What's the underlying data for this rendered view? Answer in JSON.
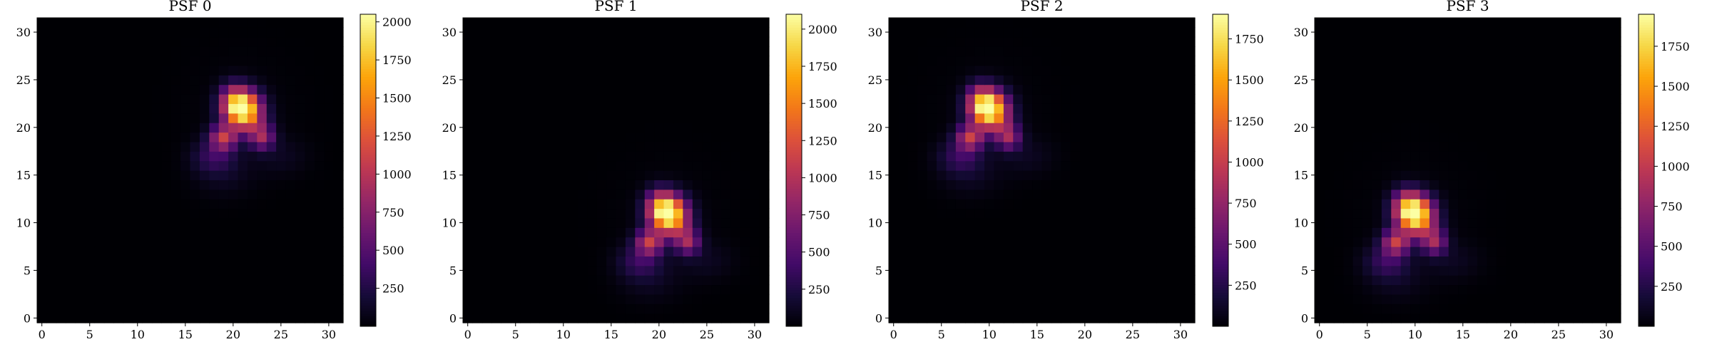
{
  "chart_data": [
    {
      "type": "heatmap",
      "title": "PSF 0",
      "xlabel": "",
      "ylabel": "",
      "xlim": [
        -0.5,
        31.5
      ],
      "ylim": [
        -0.5,
        31.5
      ],
      "xticks": [
        0,
        5,
        10,
        15,
        20,
        25,
        30
      ],
      "yticks": [
        0,
        5,
        10,
        15,
        20,
        25,
        30
      ],
      "colormap": "inferno",
      "colorbar": {
        "min": 0,
        "max": 2050,
        "ticks": [
          250,
          500,
          750,
          1000,
          1250,
          1500,
          1750,
          2000
        ]
      },
      "grid": false,
      "peak_center": [
        21,
        22
      ],
      "peak_value": 2050
    },
    {
      "type": "heatmap",
      "title": "PSF 1",
      "xlabel": "",
      "ylabel": "",
      "xlim": [
        -0.5,
        31.5
      ],
      "ylim": [
        -0.5,
        31.5
      ],
      "xticks": [
        0,
        5,
        10,
        15,
        20,
        25,
        30
      ],
      "yticks": [
        0,
        5,
        10,
        15,
        20,
        25,
        30
      ],
      "colormap": "inferno",
      "colorbar": {
        "min": 0,
        "max": 2100,
        "ticks": [
          250,
          500,
          750,
          1000,
          1250,
          1500,
          1750,
          2000
        ]
      },
      "grid": false,
      "peak_center": [
        21,
        11
      ],
      "peak_value": 2100
    },
    {
      "type": "heatmap",
      "title": "PSF 2",
      "xlabel": "",
      "ylabel": "",
      "xlim": [
        -0.5,
        31.5
      ],
      "ylim": [
        -0.5,
        31.5
      ],
      "xticks": [
        0,
        5,
        10,
        15,
        20,
        25,
        30
      ],
      "yticks": [
        0,
        5,
        10,
        15,
        20,
        25,
        30
      ],
      "colormap": "inferno",
      "colorbar": {
        "min": 0,
        "max": 1900,
        "ticks": [
          250,
          500,
          750,
          1000,
          1250,
          1500,
          1750
        ]
      },
      "grid": false,
      "peak_center": [
        10,
        22
      ],
      "peak_value": 1900
    },
    {
      "type": "heatmap",
      "title": "PSF 3",
      "xlabel": "",
      "ylabel": "",
      "xlim": [
        -0.5,
        31.5
      ],
      "ylim": [
        -0.5,
        31.5
      ],
      "xticks": [
        0,
        5,
        10,
        15,
        20,
        25,
        30
      ],
      "yticks": [
        0,
        5,
        10,
        15,
        20,
        25,
        30
      ],
      "colormap": "inferno",
      "colorbar": {
        "min": 0,
        "max": 1950,
        "ticks": [
          250,
          500,
          750,
          1000,
          1250,
          1500,
          1750
        ]
      },
      "grid": false,
      "peak_center": [
        10,
        11
      ],
      "peak_value": 1950
    }
  ]
}
